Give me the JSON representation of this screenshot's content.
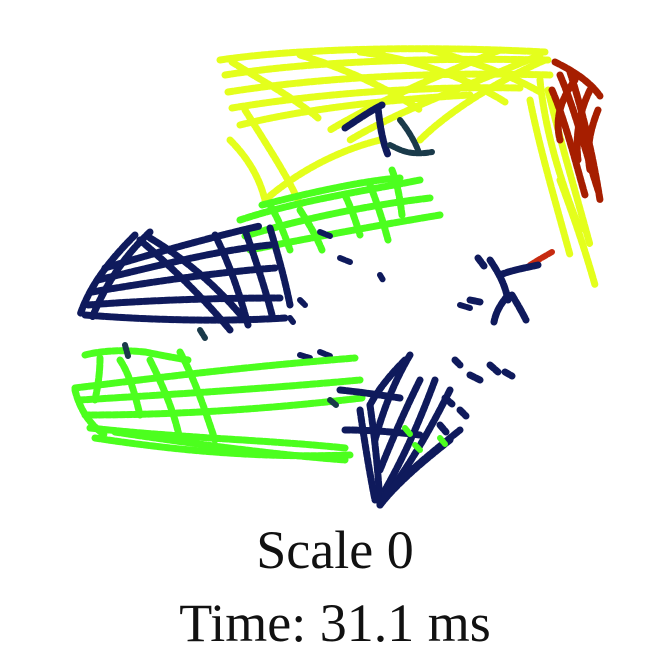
{
  "caption": {
    "scale": "Scale 0",
    "time": "Time: 31.1 ms"
  },
  "palette": {
    "navy": "#0f1a5c",
    "dark_teal": "#1a3a4a",
    "bright_green": "#4cff1e",
    "lime_yellow": "#e4ff1c",
    "dark_red": "#a61e00",
    "mid_red": "#c62a10"
  }
}
